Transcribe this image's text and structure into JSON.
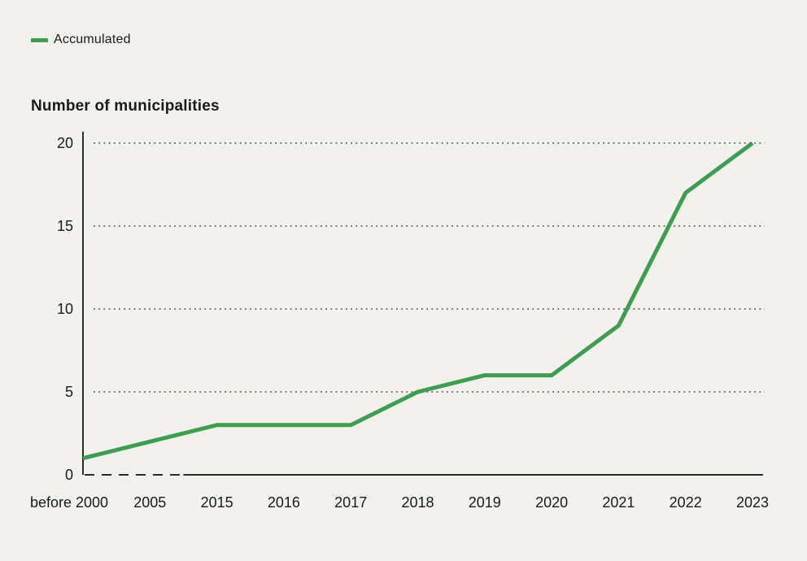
{
  "legend": {
    "items": [
      {
        "label": "Accumulated",
        "color": "#3f9d4f"
      }
    ]
  },
  "chart_data": {
    "type": "line",
    "title": "Number of municipalities",
    "categories": [
      "before 2000",
      "2005",
      "2015",
      "2016",
      "2017",
      "2018",
      "2019",
      "2020",
      "2021",
      "2022",
      "2023"
    ],
    "series": [
      {
        "name": "Accumulated",
        "color": "#3f9d4f",
        "values": [
          1,
          2,
          3,
          3,
          3,
          5,
          6,
          6,
          9,
          17,
          20
        ]
      }
    ],
    "xlabel": "",
    "ylabel": "Number of municipalities",
    "ylim": [
      0,
      20
    ],
    "y_ticks": [
      0,
      5,
      10,
      15,
      20
    ],
    "grid": "horizontal-dotted",
    "legend_position": "top-left",
    "x_axis": {
      "style_note": "axis line dashed over broken timescale",
      "dashed_break_between": [
        "2005",
        "2015"
      ]
    }
  }
}
